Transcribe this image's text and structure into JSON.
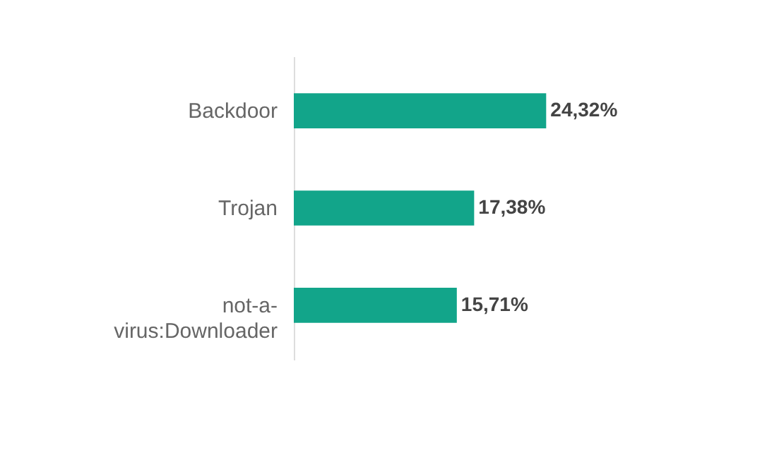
{
  "chart_data": {
    "type": "bar",
    "orientation": "horizontal",
    "categories": [
      "Backdoor",
      "Trojan",
      "not-a-virus:Downloader"
    ],
    "values": [
      24.32,
      17.38,
      15.71
    ],
    "value_labels": [
      "24,32%",
      "17,38%",
      "15,71%"
    ],
    "color": "#12a58a",
    "grid": false
  }
}
